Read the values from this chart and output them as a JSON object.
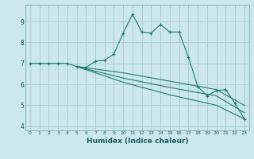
{
  "xlabel": "Humidex (Indice chaleur)",
  "ylabel": "",
  "background_color": "#cce8ec",
  "grid_color": "#aacdd4",
  "line_color": "#1a7a6e",
  "xlim": [
    -0.5,
    23.5
  ],
  "ylim": [
    3.8,
    9.8
  ],
  "xticks": [
    0,
    1,
    2,
    3,
    4,
    5,
    6,
    7,
    8,
    9,
    10,
    11,
    12,
    13,
    14,
    15,
    16,
    17,
    18,
    19,
    20,
    21,
    22,
    23
  ],
  "yticks": [
    4,
    5,
    6,
    7,
    8,
    9
  ],
  "series": [
    [
      0,
      7.0
    ],
    [
      1,
      7.0
    ],
    [
      2,
      7.0
    ],
    [
      3,
      7.0
    ],
    [
      4,
      7.0
    ],
    [
      5,
      6.85
    ],
    [
      6,
      6.8
    ],
    [
      7,
      7.1
    ],
    [
      8,
      7.15
    ],
    [
      9,
      7.45
    ],
    [
      10,
      8.45
    ],
    [
      11,
      9.35
    ],
    [
      12,
      8.5
    ],
    [
      13,
      8.45
    ],
    [
      14,
      8.85
    ],
    [
      15,
      8.5
    ],
    [
      16,
      8.5
    ],
    [
      17,
      7.3
    ],
    [
      18,
      5.9
    ],
    [
      19,
      5.45
    ],
    [
      20,
      5.7
    ],
    [
      21,
      5.75
    ],
    [
      22,
      5.1
    ],
    [
      23,
      4.35
    ]
  ],
  "fan_series": [
    [
      [
        5,
        6.85
      ],
      [
        10,
        6.1
      ],
      [
        15,
        5.5
      ],
      [
        20,
        5.0
      ],
      [
        23,
        4.35
      ]
    ],
    [
      [
        5,
        6.85
      ],
      [
        10,
        6.3
      ],
      [
        15,
        5.85
      ],
      [
        20,
        5.45
      ],
      [
        23,
        4.65
      ]
    ],
    [
      [
        5,
        6.85
      ],
      [
        10,
        6.55
      ],
      [
        15,
        6.15
      ],
      [
        20,
        5.75
      ],
      [
        23,
        5.0
      ]
    ]
  ]
}
